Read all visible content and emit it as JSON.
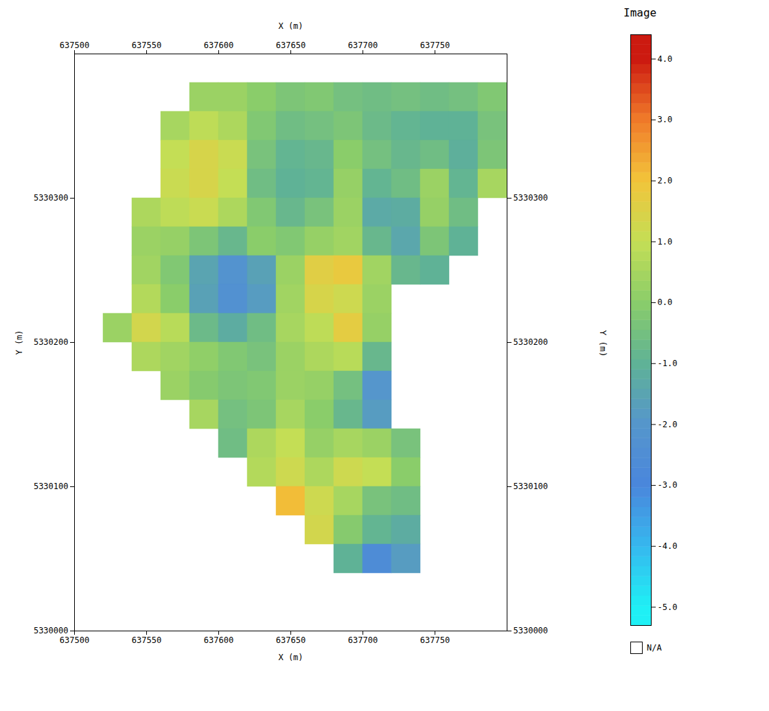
{
  "chart_data": {
    "type": "heatmap",
    "x_label": "X (m)",
    "y_label": "Y (m)",
    "xlim": [
      637500,
      637800
    ],
    "xticks": [
      637500,
      637550,
      637600,
      637650,
      637700,
      637750
    ],
    "ylim": [
      5330000,
      5330400
    ],
    "yticks": [
      5330000,
      5330100,
      5330200,
      5330300
    ],
    "x": [
      637530,
      637550,
      637570,
      637590,
      637610,
      637630,
      637650,
      637670,
      637690,
      637710,
      637730,
      637750,
      637770,
      637790
    ],
    "y": [
      5330370,
      5330350,
      5330330,
      5330310,
      5330290,
      5330270,
      5330250,
      5330230,
      5330210,
      5330190,
      5330170,
      5330150,
      5330130,
      5330110,
      5330090,
      5330070,
      5330050
    ],
    "values": [
      [
        null,
        null,
        null,
        0.3,
        0.3,
        0.0,
        -0.3,
        -0.2,
        -0.5,
        -0.6,
        -0.5,
        -0.6,
        -0.5,
        -0.2
      ],
      [
        null,
        null,
        0.5,
        0.9,
        0.6,
        -0.2,
        -0.6,
        -0.5,
        -0.3,
        -0.7,
        -0.9,
        -1.0,
        -1.0,
        -0.4
      ],
      [
        null,
        null,
        1.0,
        1.4,
        1.1,
        -0.4,
        -0.9,
        -0.8,
        0.0,
        -0.5,
        -0.8,
        -0.6,
        -1.1,
        -0.3
      ],
      [
        null,
        null,
        1.1,
        1.4,
        1.0,
        -0.6,
        -1.0,
        -0.9,
        0.2,
        -0.9,
        -0.6,
        0.3,
        -0.9,
        0.5
      ],
      [
        null,
        0.6,
        0.9,
        1.1,
        0.6,
        -0.2,
        -0.8,
        -0.4,
        0.3,
        -1.3,
        -1.2,
        0.2,
        -0.6,
        null
      ],
      [
        null,
        0.3,
        0.2,
        -0.3,
        -0.8,
        0.0,
        -0.2,
        0.2,
        0.4,
        -0.8,
        -1.4,
        -0.3,
        -1.0,
        null
      ],
      [
        null,
        0.4,
        -0.2,
        -1.5,
        -2.2,
        -1.6,
        0.3,
        1.6,
        1.8,
        0.4,
        -0.8,
        -1.0,
        null,
        null
      ],
      [
        null,
        0.7,
        0.0,
        -1.6,
        -2.3,
        -1.8,
        0.4,
        1.4,
        1.2,
        0.3,
        null,
        null,
        null,
        null
      ],
      [
        0.3,
        1.3,
        0.8,
        -0.7,
        -1.2,
        -0.6,
        0.5,
        0.9,
        1.7,
        0.2,
        null,
        null,
        null,
        null
      ],
      [
        null,
        0.6,
        0.4,
        0.1,
        -0.2,
        -0.4,
        0.3,
        0.6,
        0.8,
        -0.8,
        null,
        null,
        null,
        null
      ],
      [
        null,
        null,
        0.3,
        -0.1,
        -0.3,
        -0.2,
        0.3,
        0.2,
        -0.5,
        -2.0,
        null,
        null,
        null,
        null
      ],
      [
        null,
        null,
        null,
        0.5,
        -0.5,
        -0.3,
        0.5,
        0.0,
        -0.8,
        -1.8,
        null,
        null,
        null,
        null
      ],
      [
        null,
        null,
        null,
        null,
        -0.6,
        0.6,
        1.0,
        0.2,
        0.5,
        0.3,
        -0.4,
        null,
        null,
        null
      ],
      [
        null,
        null,
        null,
        null,
        null,
        0.7,
        1.2,
        0.6,
        1.2,
        1.0,
        0.0,
        null,
        null,
        null
      ],
      [
        null,
        null,
        null,
        null,
        null,
        null,
        2.1,
        1.2,
        0.5,
        -0.4,
        -0.6,
        null,
        null,
        null
      ],
      [
        null,
        null,
        null,
        null,
        null,
        null,
        null,
        1.3,
        -0.1,
        -0.9,
        -1.2,
        null,
        null,
        null
      ],
      [
        null,
        null,
        null,
        null,
        null,
        null,
        null,
        null,
        -1.0,
        -2.6,
        -1.8,
        null,
        null,
        null
      ]
    ],
    "colorbar": {
      "title": "Image",
      "label": "Y (m)",
      "range": [
        -5.3,
        4.4
      ],
      "ticks": [
        {
          "value": 4,
          "label": "4.0"
        },
        {
          "value": 3,
          "label": "3.0"
        },
        {
          "value": 2,
          "label": "2.0"
        },
        {
          "value": 1,
          "label": "1.0"
        },
        {
          "value": 0,
          "label": "0.0"
        },
        {
          "value": -1,
          "label": "-1.0"
        },
        {
          "value": -2,
          "label": "-2.0"
        },
        {
          "value": -3,
          "label": "-3.0"
        },
        {
          "value": -4,
          "label": "-4.0"
        },
        {
          "value": -5,
          "label": "-5.0"
        }
      ],
      "na_label": "N/A"
    }
  }
}
